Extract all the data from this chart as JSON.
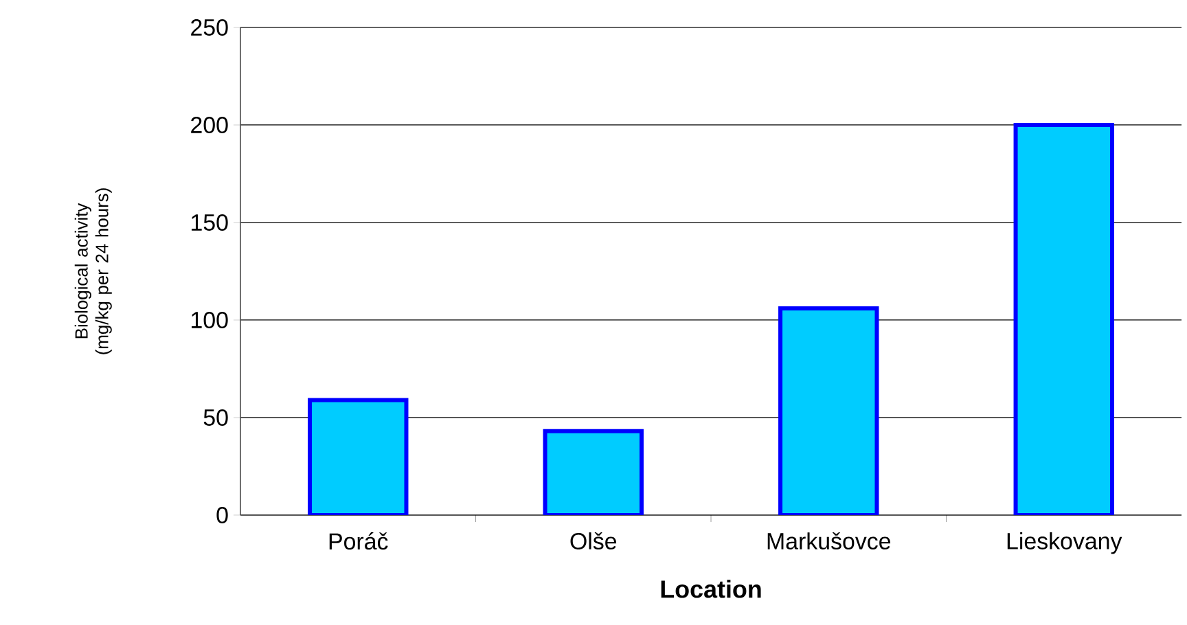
{
  "chart_data": {
    "type": "bar",
    "xlabel": "Location",
    "ylabel": "Biological activity (mg/kg per 24 hours)",
    "categories": [
      "Poráč",
      "Olše",
      "Markušovce",
      "Lieskovany"
    ],
    "series": [
      {
        "color": "#00ccff",
        "values": [
          59,
          43,
          106,
          200
        ]
      }
    ],
    "ylim": [
      0,
      250
    ],
    "yticks": [
      0,
      50,
      100,
      150,
      200,
      250
    ],
    "grid": "y"
  }
}
